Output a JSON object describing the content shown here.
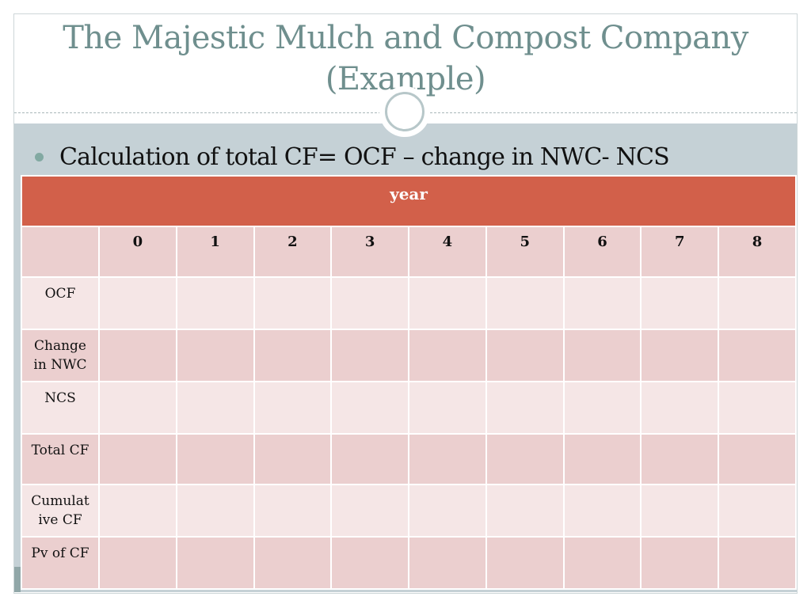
{
  "slide": {
    "title_line1": "The Majestic Mulch and Compost Company",
    "title_line2": "(Example)",
    "bullet": "Calculation of total CF= OCF – change in NWC- NCS"
  },
  "table": {
    "header": "year",
    "years": [
      "0",
      "1",
      "2",
      "3",
      "4",
      "5",
      "6",
      "7",
      "8"
    ],
    "rows": [
      {
        "label": "OCF"
      },
      {
        "label_line1": "Change",
        "label_line2": "in NWC"
      },
      {
        "label": "NCS"
      },
      {
        "label": "Total CF"
      },
      {
        "label_line1": "Cumulat",
        "label_line2": "ive CF"
      },
      {
        "label": "Pv of CF"
      }
    ]
  },
  "colors": {
    "title": "#6f8f8e",
    "header_fill": "#d2604a",
    "row_dark": "#ebcfcf",
    "row_light": "#f5e6e6",
    "band": "#c5d1d6"
  }
}
